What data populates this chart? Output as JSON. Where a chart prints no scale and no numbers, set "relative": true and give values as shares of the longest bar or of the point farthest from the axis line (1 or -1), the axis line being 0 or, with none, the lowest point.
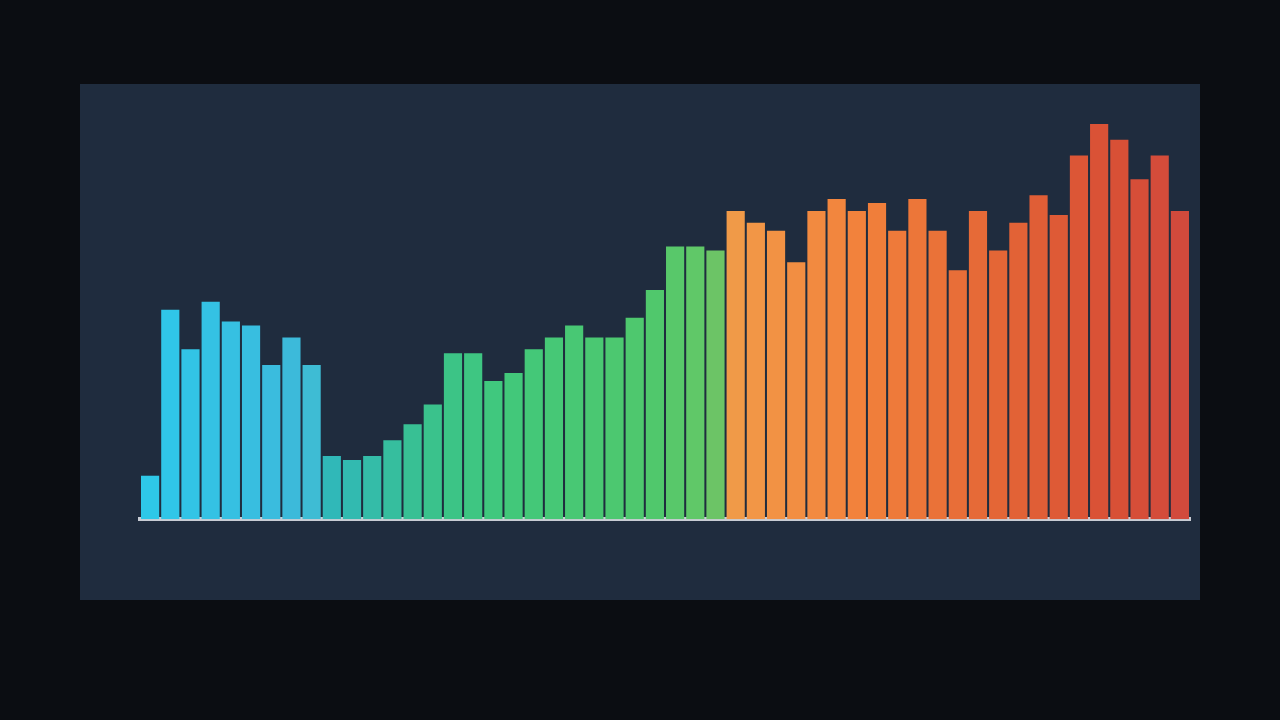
{
  "chart_data": {
    "type": "bar",
    "relative": true,
    "categories": [
      null,
      null,
      null,
      null,
      null,
      null,
      null,
      null,
      null,
      null,
      null,
      null,
      null,
      null,
      null,
      null,
      null,
      null,
      null,
      null,
      null,
      null,
      null,
      null,
      null,
      null,
      null,
      null,
      null,
      null,
      null,
      null,
      null,
      null,
      null,
      null,
      null,
      null,
      null,
      null,
      null,
      null,
      null,
      null,
      null,
      null,
      null,
      null,
      null,
      null,
      null,
      null
    ],
    "values": [
      0.11,
      0.53,
      0.43,
      0.55,
      0.5,
      0.49,
      0.39,
      0.46,
      0.39,
      0.16,
      0.15,
      0.16,
      0.2,
      0.24,
      0.29,
      0.42,
      0.42,
      0.35,
      0.37,
      0.43,
      0.46,
      0.49,
      0.46,
      0.46,
      0.51,
      0.58,
      0.69,
      0.69,
      0.68,
      0.78,
      0.75,
      0.73,
      0.65,
      0.78,
      0.81,
      0.78,
      0.8,
      0.73,
      0.81,
      0.73,
      0.63,
      0.78,
      0.68,
      0.75,
      0.82,
      0.77,
      0.92,
      1,
      0.96,
      0.86,
      0.92,
      0.78
    ],
    "colors": [
      "#2ec8e8",
      "#30c6e8",
      "#32c4e6",
      "#34c2e4",
      "#36c0e2",
      "#38bee0",
      "#3abcde",
      "#3cbada",
      "#3ebcd4",
      "#30b8b8",
      "#32bab0",
      "#34bca8",
      "#36be9e",
      "#38c094",
      "#3ac28c",
      "#3cc486",
      "#3ec682",
      "#40c87e",
      "#42c87a",
      "#44c878",
      "#46c876",
      "#48c874",
      "#4ac872",
      "#4cc870",
      "#4ec86e",
      "#50c86c",
      "#58c86a",
      "#60c868",
      "#6cc466",
      "#f09a48",
      "#f29646",
      "#f29244",
      "#f28e42",
      "#f28a40",
      "#f2863e",
      "#f2823c",
      "#f07e3a",
      "#ee7a3a",
      "#ec7639",
      "#ea7238",
      "#e86e38",
      "#e66a37",
      "#e46636",
      "#e26236",
      "#e05e36",
      "#de5a36",
      "#dc5636",
      "#da5236",
      "#d85036",
      "#d64e38",
      "#d44c3a",
      "#d24a3c"
    ]
  }
}
